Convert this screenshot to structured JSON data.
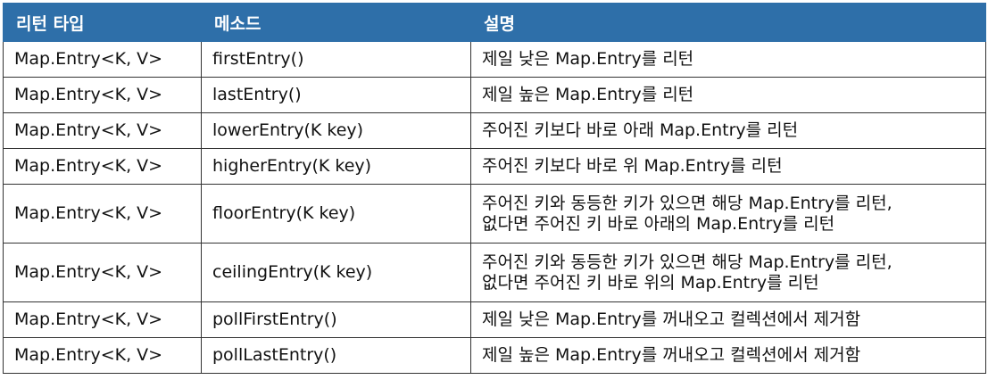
{
  "headers": {
    "return_type": "리턴 타입",
    "method": "메소드",
    "description": "설명"
  },
  "rows": [
    {
      "return_type": "Map.Entry<K, V>",
      "method": "firstEntry()",
      "description": [
        "제일 낮은 Map.Entry를 리턴"
      ]
    },
    {
      "return_type": "Map.Entry<K, V>",
      "method": "lastEntry()",
      "description": [
        "제일 높은 Map.Entry를 리턴"
      ]
    },
    {
      "return_type": "Map.Entry<K, V>",
      "method": "lowerEntry(K key)",
      "description": [
        "주어진 키보다 바로 아래 Map.Entry를 리턴"
      ]
    },
    {
      "return_type": "Map.Entry<K, V>",
      "method": "higherEntry(K key)",
      "description": [
        "주어진 키보다 바로 위 Map.Entry를 리턴"
      ]
    },
    {
      "return_type": "Map.Entry<K, V>",
      "method": "floorEntry(K key)",
      "description": [
        "주어진 키와 동등한 키가 있으면 해당 Map.Entry를 리턴,",
        "없다면 주어진 키 바로 아래의 Map.Entry를 리턴"
      ]
    },
    {
      "return_type": "Map.Entry<K, V>",
      "method": "ceilingEntry(K key)",
      "description": [
        "주어진 키와 동등한 키가 있으면 해당 Map.Entry를 리턴,",
        "없다면 주어진 키 바로 위의 Map.Entry를 리턴"
      ]
    },
    {
      "return_type": "Map.Entry<K, V>",
      "method": "pollFirstEntry()",
      "description": [
        "제일 낮은 Map.Entry를 꺼내오고 컬렉션에서 제거함"
      ]
    },
    {
      "return_type": "Map.Entry<K, V>",
      "method": "pollLastEntry()",
      "description": [
        "제일 높은 Map.Entry를 꺼내오고 컬렉션에서 제거함"
      ]
    }
  ]
}
